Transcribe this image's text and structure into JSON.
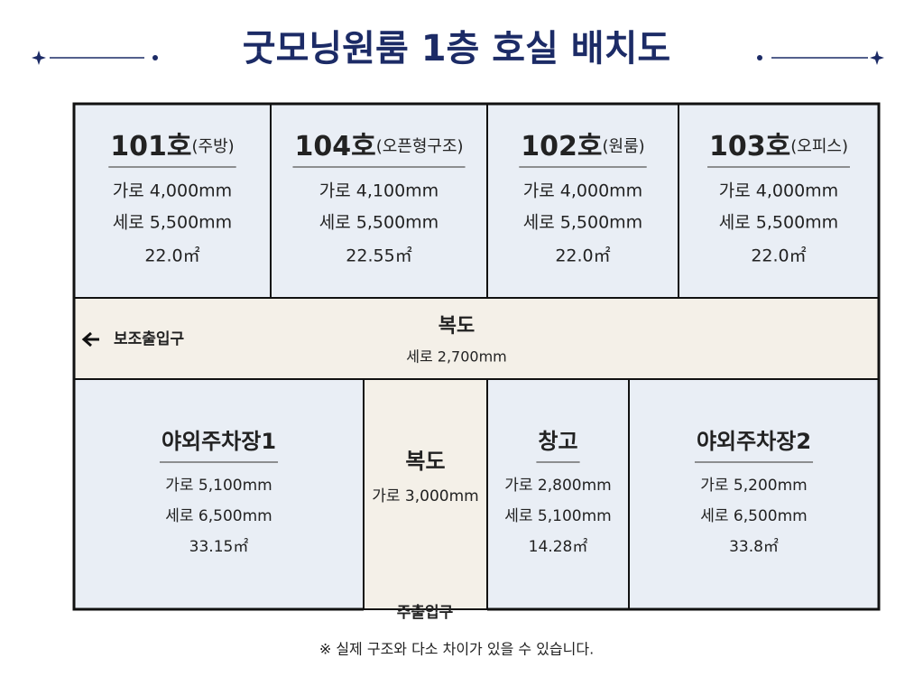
{
  "title": "굿모닝원룸 1층 호실 배치도",
  "rooms": [
    {
      "name": "101호",
      "note": "(주방)",
      "lines": [
        "가로 4,000mm",
        "세로 5,500mm",
        "22.0㎡"
      ]
    },
    {
      "name": "104호",
      "note": "(오픈형구조)",
      "lines": [
        "가로 4,100mm",
        "세로 5,500mm",
        "22.55㎡"
      ]
    },
    {
      "name": "102호",
      "note": "(원룸)",
      "lines": [
        "가로 4,000mm",
        "세로 5,500mm",
        "22.0㎡"
      ]
    },
    {
      "name": "103호",
      "note": "(오피스)",
      "lines": [
        "가로 4,000mm",
        "세로 5,500mm",
        "22.0㎡"
      ]
    },
    {
      "name": "야외주차장1",
      "lines": [
        "가로 5,100mm",
        "세로 6,500mm",
        "33.15㎡"
      ]
    },
    {
      "name": "복도",
      "lines": [
        "가로 3,000mm"
      ]
    },
    {
      "name": "창고",
      "lines": [
        "가로 2,800mm",
        "세로 5,100mm",
        "14.28㎡"
      ]
    },
    {
      "name": "야외주차장2",
      "lines": [
        "가로 5,200mm",
        "세로 6,500mm",
        "33.8㎡"
      ]
    }
  ],
  "hallway": {
    "name": "복도",
    "dim": "세로 2,700mm"
  },
  "side_entrance": "보조출입구",
  "main_entrance": "주출입구",
  "footnote": "※ 실제 구조와 다소 차이가 있을 수 있습니다."
}
